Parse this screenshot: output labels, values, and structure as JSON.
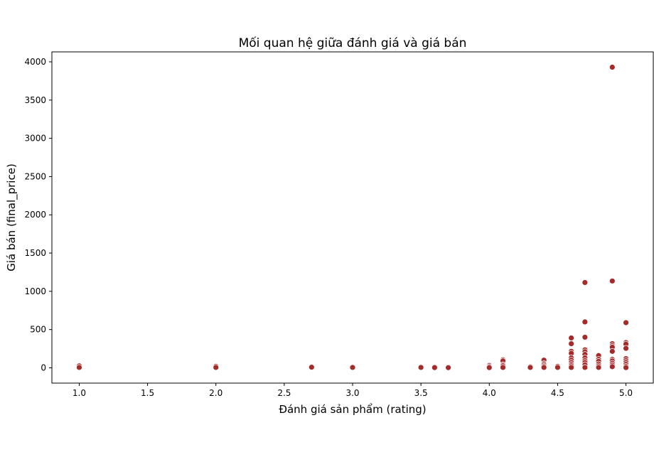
{
  "chart_data": {
    "type": "scatter",
    "title": "Mối quan hệ giữa đánh giá và giá bán",
    "xlabel": "Đánh giá sản phẩm (rating)",
    "ylabel": "Giá bán (final_price)",
    "xlim": [
      0.8,
      5.2
    ],
    "ylim": [
      -200,
      4130
    ],
    "xticks": [
      1.0,
      1.5,
      2.0,
      2.5,
      3.0,
      3.5,
      4.0,
      4.5,
      5.0
    ],
    "xtick_labels": [
      "1.0",
      "1.5",
      "2.0",
      "2.5",
      "3.0",
      "3.5",
      "4.0",
      "4.5",
      "5.0"
    ],
    "yticks": [
      0,
      500,
      1000,
      1500,
      2000,
      2500,
      3000,
      3500,
      4000
    ],
    "ytick_labels": [
      "0",
      "500",
      "1000",
      "1500",
      "2000",
      "2500",
      "3000",
      "3500",
      "4000"
    ],
    "grid": false,
    "legend": "none",
    "marker_color": "#a52a2a",
    "marker_edge_color": "#ffffff",
    "points": [
      {
        "x": 1.0,
        "y": 25
      },
      {
        "x": 1.0,
        "y": 5
      },
      {
        "x": 2.0,
        "y": 20
      },
      {
        "x": 2.0,
        "y": 5
      },
      {
        "x": 2.7,
        "y": 8
      },
      {
        "x": 3.0,
        "y": 5
      },
      {
        "x": 3.5,
        "y": 5
      },
      {
        "x": 3.6,
        "y": 3
      },
      {
        "x": 3.7,
        "y": 2
      },
      {
        "x": 4.0,
        "y": 30
      },
      {
        "x": 4.0,
        "y": 15
      },
      {
        "x": 4.0,
        "y": 3
      },
      {
        "x": 4.1,
        "y": 105
      },
      {
        "x": 4.1,
        "y": 90
      },
      {
        "x": 4.1,
        "y": 40
      },
      {
        "x": 4.1,
        "y": 25
      },
      {
        "x": 4.1,
        "y": 5
      },
      {
        "x": 4.3,
        "y": 15
      },
      {
        "x": 4.3,
        "y": 5
      },
      {
        "x": 4.4,
        "y": 100
      },
      {
        "x": 4.4,
        "y": 55
      },
      {
        "x": 4.4,
        "y": 40
      },
      {
        "x": 4.4,
        "y": 20
      },
      {
        "x": 4.4,
        "y": 5
      },
      {
        "x": 4.5,
        "y": 20
      },
      {
        "x": 4.5,
        "y": 5
      },
      {
        "x": 4.6,
        "y": 390
      },
      {
        "x": 4.6,
        "y": 315
      },
      {
        "x": 4.6,
        "y": 215
      },
      {
        "x": 4.6,
        "y": 190
      },
      {
        "x": 4.6,
        "y": 130
      },
      {
        "x": 4.6,
        "y": 100
      },
      {
        "x": 4.6,
        "y": 70
      },
      {
        "x": 4.6,
        "y": 45
      },
      {
        "x": 4.6,
        "y": 25
      },
      {
        "x": 4.6,
        "y": 5
      },
      {
        "x": 4.7,
        "y": 1115
      },
      {
        "x": 4.7,
        "y": 600
      },
      {
        "x": 4.7,
        "y": 400
      },
      {
        "x": 4.7,
        "y": 235
      },
      {
        "x": 4.7,
        "y": 210
      },
      {
        "x": 4.7,
        "y": 175
      },
      {
        "x": 4.7,
        "y": 130
      },
      {
        "x": 4.7,
        "y": 95
      },
      {
        "x": 4.7,
        "y": 70
      },
      {
        "x": 4.7,
        "y": 40
      },
      {
        "x": 4.7,
        "y": 5
      },
      {
        "x": 4.8,
        "y": 160
      },
      {
        "x": 4.8,
        "y": 110
      },
      {
        "x": 4.8,
        "y": 85
      },
      {
        "x": 4.8,
        "y": 50
      },
      {
        "x": 4.8,
        "y": 25
      },
      {
        "x": 4.8,
        "y": 5
      },
      {
        "x": 4.9,
        "y": 3930
      },
      {
        "x": 4.9,
        "y": 1135
      },
      {
        "x": 4.9,
        "y": 315
      },
      {
        "x": 4.9,
        "y": 290
      },
      {
        "x": 4.9,
        "y": 270
      },
      {
        "x": 4.9,
        "y": 215
      },
      {
        "x": 4.9,
        "y": 110
      },
      {
        "x": 4.9,
        "y": 90
      },
      {
        "x": 4.9,
        "y": 60
      },
      {
        "x": 4.9,
        "y": 35
      },
      {
        "x": 4.9,
        "y": 15
      },
      {
        "x": 5.0,
        "y": 590
      },
      {
        "x": 5.0,
        "y": 330
      },
      {
        "x": 5.0,
        "y": 310
      },
      {
        "x": 5.0,
        "y": 255
      },
      {
        "x": 5.0,
        "y": 120
      },
      {
        "x": 5.0,
        "y": 95
      },
      {
        "x": 5.0,
        "y": 70
      },
      {
        "x": 5.0,
        "y": 45
      },
      {
        "x": 5.0,
        "y": 20
      },
      {
        "x": 5.0,
        "y": 3
      }
    ]
  }
}
